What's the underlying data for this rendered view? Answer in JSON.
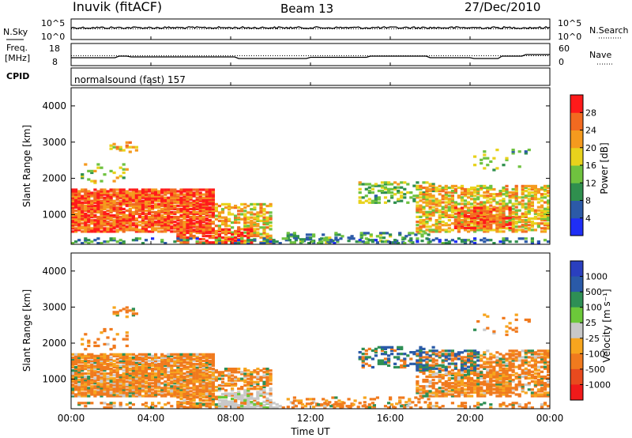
{
  "header": {
    "station": "Inuvik (fitACF)",
    "beam": "Beam 13",
    "date": "27/Dec/2010"
  },
  "nsky_panel": {
    "left_label": "N.Sky",
    "right_label": "N.Search",
    "left_ticks": [
      "10^5",
      "10^0"
    ],
    "right_ticks": [
      "10^5",
      "10^0"
    ]
  },
  "freq_panel": {
    "left_label_1": "Freq.",
    "left_label_2": "[MHz]",
    "right_label": "Nave",
    "left_ticks": [
      "18",
      "8"
    ],
    "right_ticks": [
      "60",
      "0"
    ]
  },
  "cpid": {
    "label": "CPID",
    "text": "normalsound (fast) 157"
  },
  "chart_data": [
    {
      "type": "heatmap",
      "title": "Power",
      "ylabel": "Slant Range [km]",
      "xlabel": "Time UT",
      "ylim": [
        180,
        4500
      ],
      "y_ticks": [
        1000,
        2000,
        3000,
        4000
      ],
      "x_ticks": [
        "00:00",
        "04:00",
        "08:00",
        "12:00",
        "16:00",
        "20:00",
        "00:00"
      ],
      "colorbar": {
        "label": "Power [dB]",
        "tick_labels": [
          "4",
          "8",
          "12",
          "16",
          "20",
          "24",
          "28"
        ],
        "colors": [
          "#1f2ef5",
          "#2c5aa8",
          "#2f8f4e",
          "#6fc23f",
          "#e8d21c",
          "#f59a1e",
          "#f26a20",
          "#ff1a1a"
        ]
      }
    },
    {
      "type": "heatmap",
      "title": "Velocity",
      "ylabel": "Slant Range [km]",
      "xlabel": "Time UT",
      "ylim": [
        180,
        4500
      ],
      "y_ticks": [
        1000,
        2000,
        3000,
        4000
      ],
      "x_ticks": [
        "00:00",
        "04:00",
        "08:00",
        "12:00",
        "16:00",
        "20:00",
        "00:00"
      ],
      "colorbar": {
        "label": "Velocity [m s⁻¹]",
        "tick_labels": [
          "1000",
          "500",
          "100",
          "25",
          "-25",
          "-100",
          "-500",
          "-1000"
        ],
        "colors": [
          "#2a3fbf",
          "#2a5aa8",
          "#2e8f55",
          "#6cc83a",
          "#c8c8c8",
          "#f7a51e",
          "#f07a1e",
          "#e84a1e",
          "#f01a1a"
        ]
      }
    }
  ],
  "x_axis_title": "Time UT"
}
